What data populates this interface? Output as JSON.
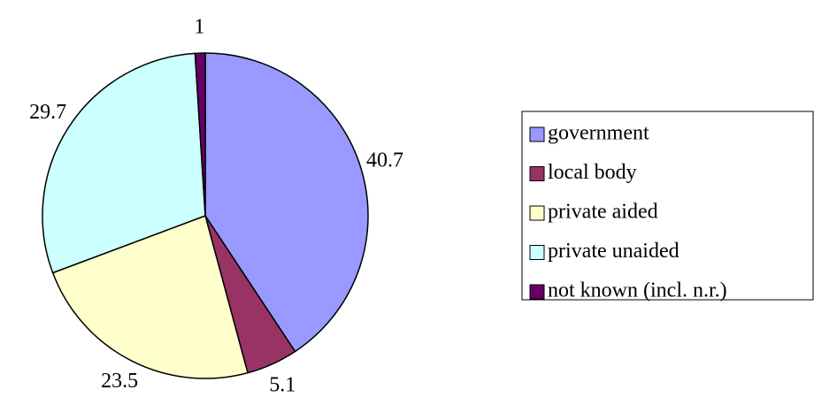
{
  "chart_data": {
    "type": "pie",
    "categories": [
      "government",
      "local body",
      "private aided",
      "private unaided",
      "not known (incl. n.r.)"
    ],
    "values": [
      40.7,
      5.1,
      23.5,
      29.7,
      1
    ],
    "colors": [
      "#9999ff",
      "#993366",
      "#ffffcc",
      "#ccffff",
      "#660066"
    ],
    "legend": "right"
  }
}
